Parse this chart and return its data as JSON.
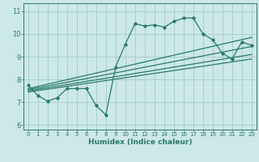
{
  "bg_color": "#cce8e8",
  "grid_color": "#aacece",
  "line_color": "#2a7a6a",
  "xlabel": "Humidex (Indice chaleur)",
  "xlim": [
    -0.5,
    23.5
  ],
  "ylim": [
    5.8,
    11.35
  ],
  "yticks": [
    6,
    7,
    8,
    9,
    10,
    11
  ],
  "xticks": [
    0,
    1,
    2,
    3,
    4,
    5,
    6,
    7,
    8,
    9,
    10,
    11,
    12,
    13,
    14,
    15,
    16,
    17,
    18,
    19,
    20,
    21,
    22,
    23
  ],
  "line1_x": [
    0,
    1,
    2,
    3,
    4,
    5,
    6,
    7,
    8,
    9,
    10,
    11,
    12,
    13,
    14,
    15,
    16,
    17,
    18,
    19,
    20,
    21,
    22,
    23
  ],
  "line1_y": [
    7.75,
    7.3,
    7.05,
    7.2,
    7.6,
    7.6,
    7.6,
    6.85,
    6.45,
    8.55,
    9.55,
    10.45,
    10.35,
    10.4,
    10.3,
    10.55,
    10.7,
    10.7,
    10.0,
    9.75,
    9.15,
    8.9,
    9.65,
    9.5
  ],
  "line2_x": [
    0,
    23
  ],
  "line2_y": [
    7.6,
    9.85
  ],
  "line3_x": [
    0,
    23
  ],
  "line3_y": [
    7.55,
    9.45
  ],
  "line4_x": [
    0,
    23
  ],
  "line4_y": [
    7.5,
    9.1
  ],
  "line5_x": [
    0,
    23
  ],
  "line5_y": [
    7.45,
    8.9
  ]
}
